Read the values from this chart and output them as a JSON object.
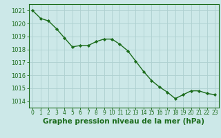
{
  "x": [
    0,
    1,
    2,
    3,
    4,
    5,
    6,
    7,
    8,
    9,
    10,
    11,
    12,
    13,
    14,
    15,
    16,
    17,
    18,
    19,
    20,
    21,
    22,
    23
  ],
  "y": [
    1021.0,
    1020.4,
    1020.2,
    1019.6,
    1018.9,
    1018.2,
    1018.3,
    1018.3,
    1018.6,
    1018.8,
    1018.8,
    1018.4,
    1017.9,
    1017.1,
    1016.3,
    1015.6,
    1015.1,
    1014.7,
    1014.2,
    1014.5,
    1014.8,
    1014.8,
    1014.6,
    1014.5
  ],
  "ylim": [
    1013.5,
    1021.5
  ],
  "yticks": [
    1014,
    1015,
    1016,
    1017,
    1018,
    1019,
    1020,
    1021
  ],
  "xticks": [
    0,
    1,
    2,
    3,
    4,
    5,
    6,
    7,
    8,
    9,
    10,
    11,
    12,
    13,
    14,
    15,
    16,
    17,
    18,
    19,
    20,
    21,
    22,
    23
  ],
  "line_color": "#1a6b1a",
  "marker": "D",
  "marker_size": 2.2,
  "bg_color": "#cce8e8",
  "grid_color": "#aed0d0",
  "xlabel": "Graphe pression niveau de la mer (hPa)",
  "xlabel_color": "#1a6b1a",
  "tick_color": "#1a6b1a",
  "axis_color": "#1a6b1a",
  "xlabel_fontsize": 7.5,
  "tick_fontsize": 5.5,
  "ytick_fontsize": 6.0,
  "line_width": 1.0,
  "xlim": [
    -0.5,
    23.5
  ]
}
